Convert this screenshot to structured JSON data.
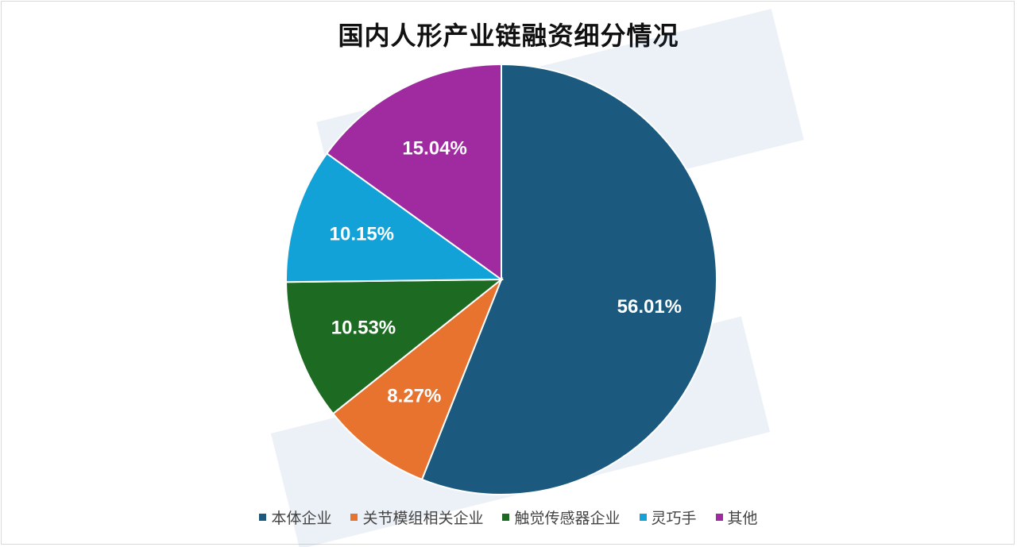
{
  "chart_data": {
    "type": "pie",
    "title": "国内人形产业链融资细分情况",
    "categories": [
      "本体企业",
      "关节模组相关企业",
      "触觉传感器企业",
      "灵巧手",
      "其他"
    ],
    "values": [
      56.01,
      8.27,
      10.53,
      10.15,
      15.04
    ],
    "labels": [
      "56.01%",
      "8.27%",
      "10.53%",
      "10.15%",
      "15.04%"
    ],
    "colors": [
      "#1b5a7e",
      "#e8732f",
      "#1d6b22",
      "#12a2d8",
      "#a02a9f"
    ],
    "start_angle_deg": 0,
    "direction": "clockwise",
    "legend_position": "bottom"
  }
}
